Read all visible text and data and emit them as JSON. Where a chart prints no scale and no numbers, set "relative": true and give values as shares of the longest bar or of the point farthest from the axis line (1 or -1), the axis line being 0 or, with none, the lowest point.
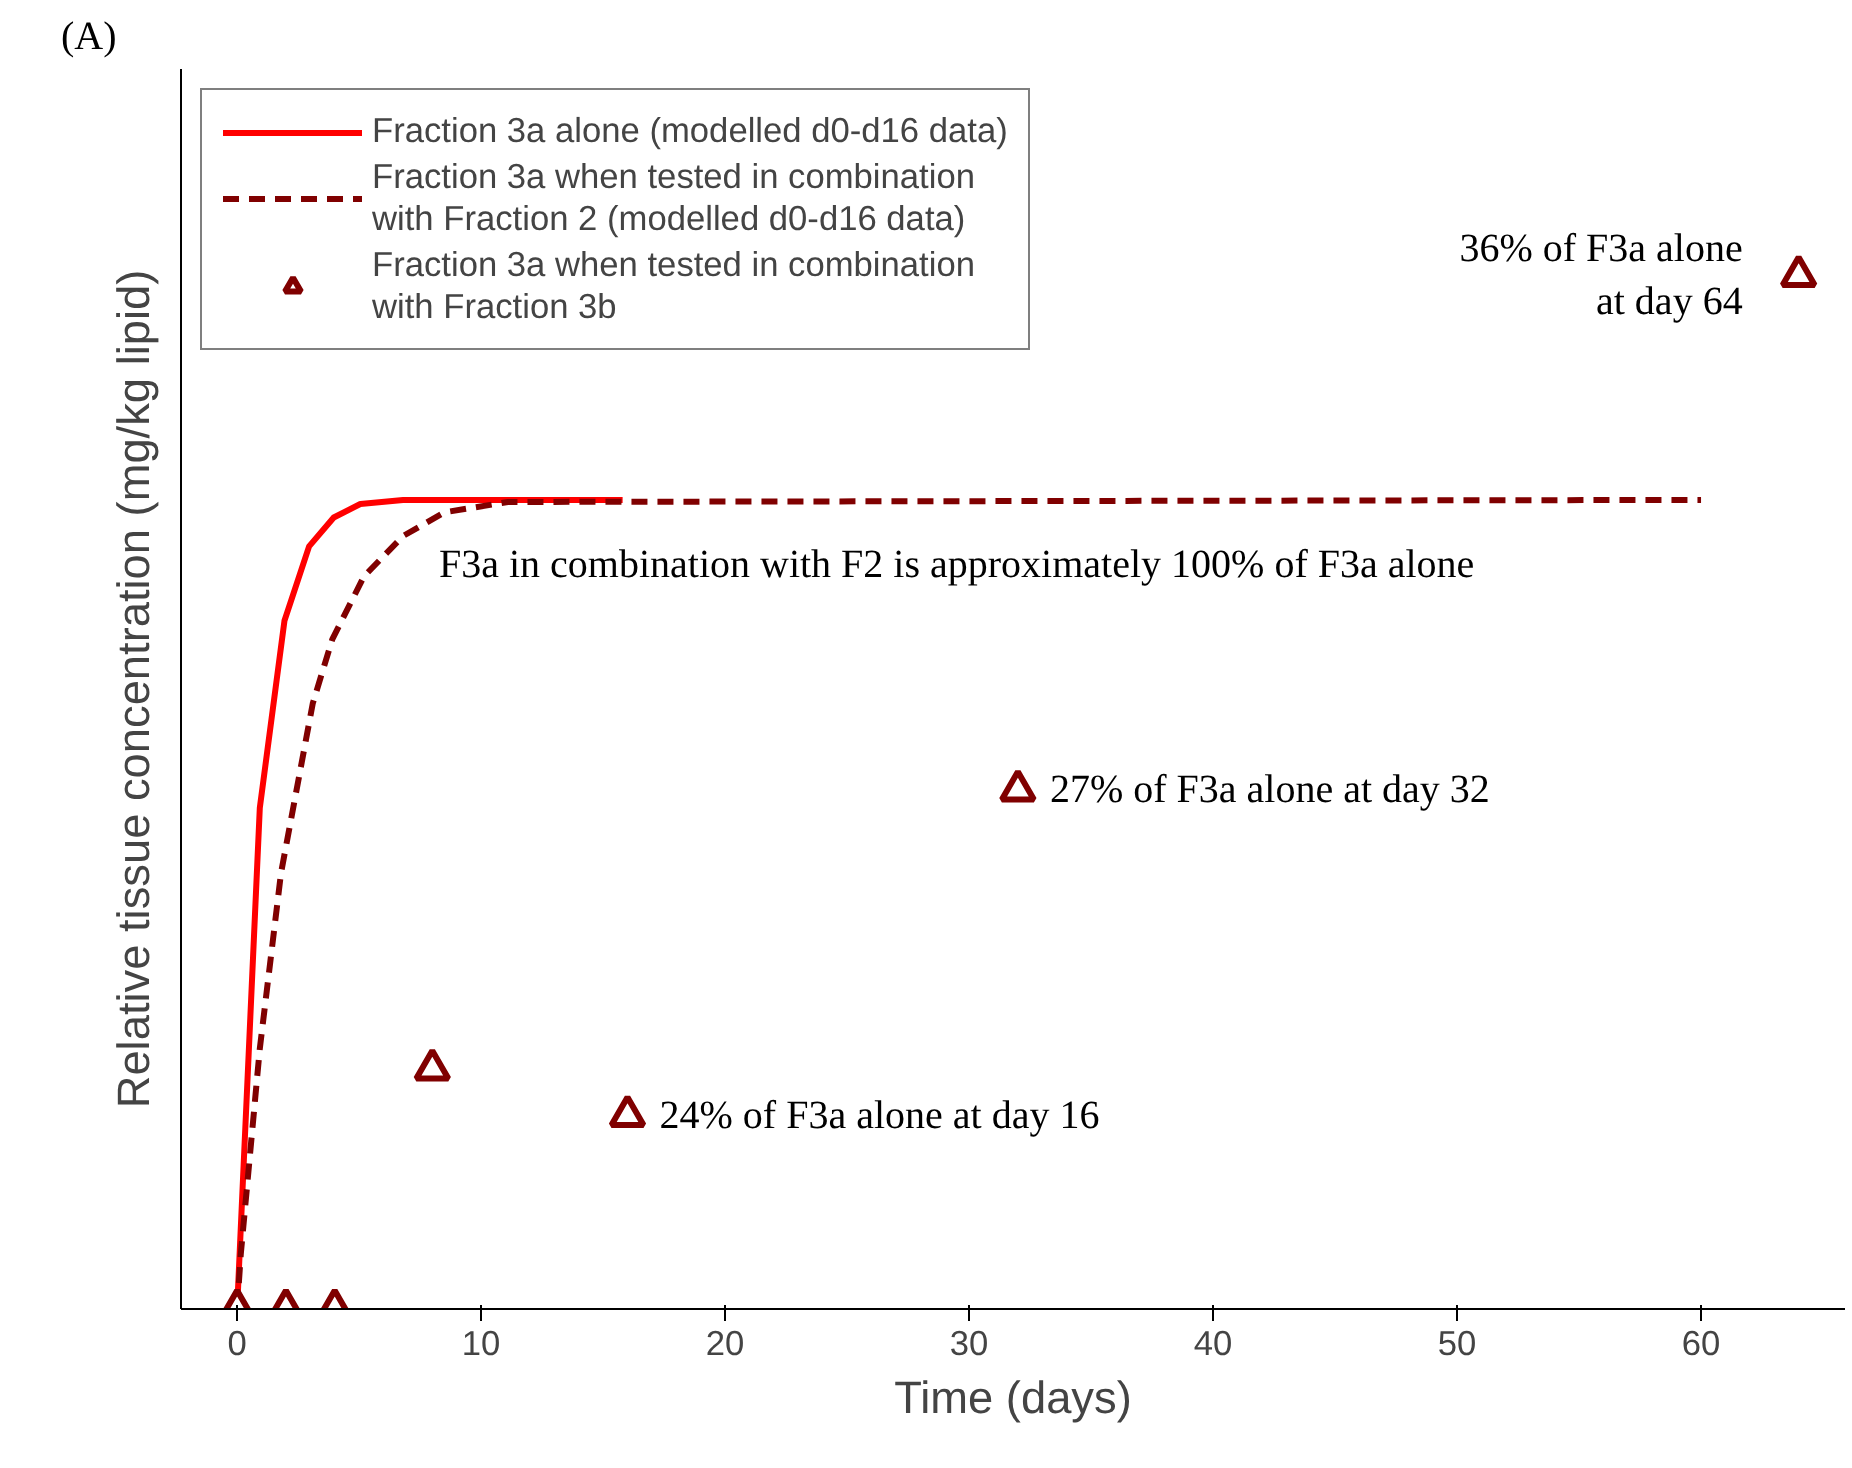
{
  "chart_data": {
    "type": "line",
    "relative": true,
    "xlabel": "Time (days)",
    "ylabel": "Relative tissue concentration (mg/kg lipid)",
    "xlim": [
      -2.3,
      65.9
    ],
    "xticks": [
      0,
      10,
      20,
      30,
      40,
      50,
      60
    ],
    "legend": "top left",
    "series": [
      {
        "name": "Fraction 3a alone (modelled d0-d16 data)",
        "color": "#ff0000",
        "line_style": "solid",
        "x": [
          0,
          0.93,
          1.94,
          2.95,
          3.96,
          5.05,
          6.8,
          15.8
        ],
        "values": [
          0,
          0.485,
          0.666,
          0.738,
          0.766,
          0.779,
          0.783,
          0.783
        ]
      },
      {
        "name": "Fraction 3a when tested in combination with Fraction 2 (modelled d0-d16 data)",
        "color": "#800000",
        "line_style": "dashed",
        "x": [
          0,
          0.15,
          0.93,
          1.8,
          3.1,
          3.9,
          5.2,
          6.8,
          8.5,
          11.1,
          60
        ],
        "values": [
          0,
          0.053,
          0.252,
          0.422,
          0.586,
          0.648,
          0.709,
          0.748,
          0.771,
          0.781,
          0.783
        ]
      },
      {
        "name": "Fraction 3a when tested in combination with Fraction 3b",
        "type": "scatter",
        "marker": "triangle",
        "color": "#800000",
        "x": [
          0,
          2,
          4,
          8,
          16,
          32,
          64
        ],
        "values": [
          0,
          0,
          0,
          0.232,
          0.187,
          0.502,
          1
        ]
      }
    ],
    "annotations": [
      "(A)",
      "F3a in combination with F2 is approximately 100% of F3a alone",
      {
        "text": "27% of F3a alone at day 32",
        "x": 32,
        "y": 0.502
      },
      {
        "text": "24% of F3a alone at day 16",
        "x": 16,
        "y": 0.187
      },
      {
        "text": "36% of F3a alone at day 64",
        "x": 64,
        "y": 1
      }
    ]
  }
}
